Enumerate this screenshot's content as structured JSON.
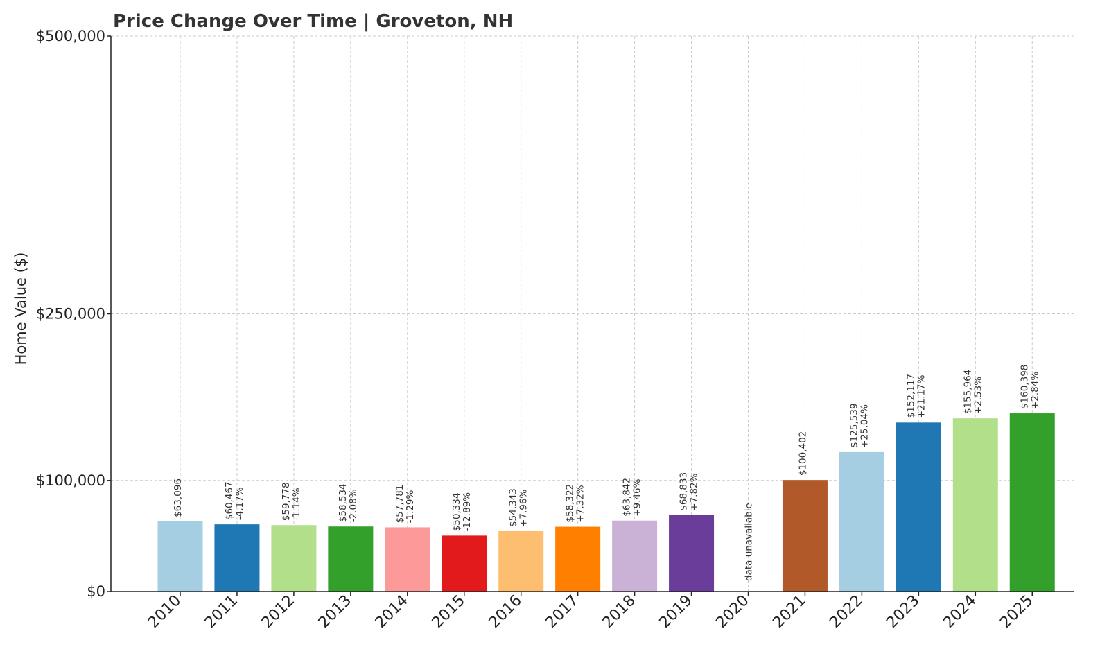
{
  "chart_data": {
    "type": "bar",
    "title": "Price Change Over Time | Groveton, NH",
    "xlabel": "",
    "ylabel": "Home Value ($)",
    "ylim": [
      0,
      500000
    ],
    "y_ticks": [
      {
        "value": 0,
        "label": "$0"
      },
      {
        "value": 100000,
        "label": "$100,000"
      },
      {
        "value": 250000,
        "label": "$250,000"
      },
      {
        "value": 500000,
        "label": "$500,000"
      }
    ],
    "grid": true,
    "categories": [
      "2010",
      "2011",
      "2012",
      "2013",
      "2014",
      "2015",
      "2016",
      "2017",
      "2018",
      "2019",
      "2020",
      "2021",
      "2022",
      "2023",
      "2024",
      "2025"
    ],
    "values": [
      63096,
      60467,
      59778,
      58534,
      57781,
      50334,
      54343,
      58322,
      63842,
      68833,
      null,
      100402,
      125539,
      152117,
      155964,
      160398
    ],
    "value_labels": [
      "$63,096",
      "$60,467",
      "$59,778",
      "$58,534",
      "$57,781",
      "$50,334",
      "$54,343",
      "$58,322",
      "$63,842",
      "$68,833",
      "data unavailable",
      "$100,402",
      "$125,539",
      "$152,117",
      "$155,964",
      "$160,398"
    ],
    "change_labels": [
      "",
      "-4.17%",
      "-1.14%",
      "-2.08%",
      "-1.29%",
      "-12.89%",
      "+7.96%",
      "+7.32%",
      "+9.46%",
      "+7.82%",
      "",
      "",
      "+25.04%",
      "+21.17%",
      "+2.53%",
      "+2.84%"
    ],
    "colors": [
      "#a6cee3",
      "#1f78b4",
      "#b2df8a",
      "#33a02c",
      "#fb9a99",
      "#e31a1c",
      "#fdbf6f",
      "#ff7f00",
      "#cab2d6",
      "#6a3d9a",
      "#ffff99",
      "#b15928",
      "#a6cee3",
      "#1f78b4",
      "#b2df8a",
      "#33a02c"
    ]
  }
}
